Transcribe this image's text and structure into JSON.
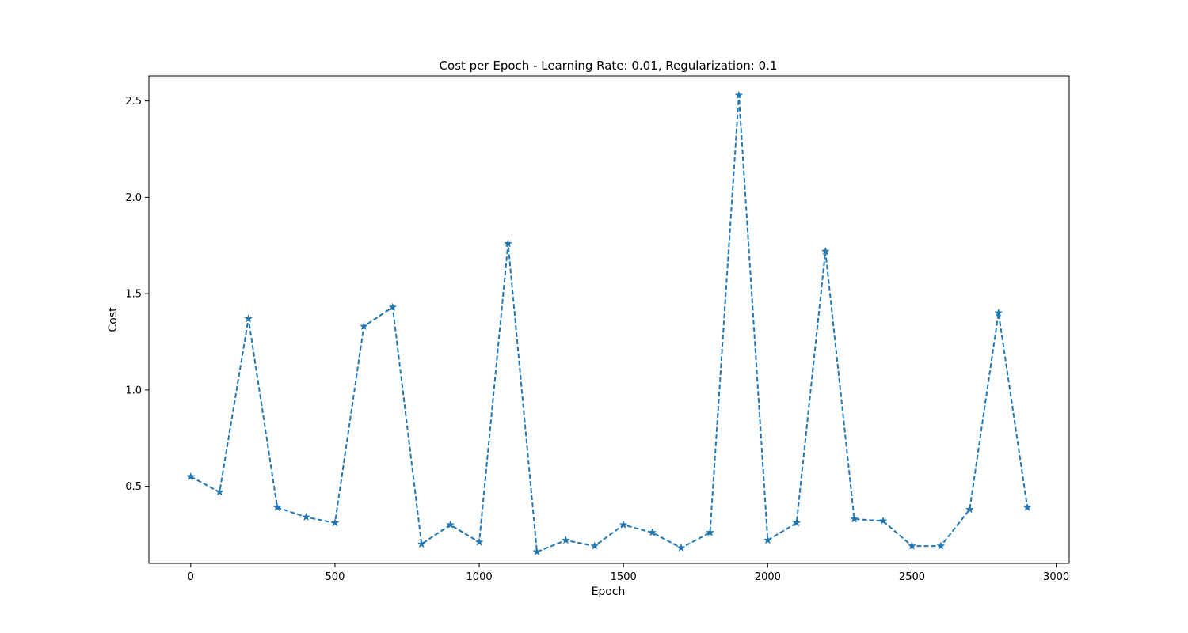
{
  "chart_data": {
    "type": "line",
    "title": "Cost per Epoch - Learning Rate: 0.01, Regularization: 0.1",
    "xlabel": "Epoch",
    "ylabel": "Cost",
    "xlim": [
      -145,
      3045
    ],
    "ylim": [
      0.1,
      2.63
    ],
    "xticks": [
      0,
      500,
      1000,
      1500,
      2000,
      2500,
      3000
    ],
    "xtick_labels": [
      "0",
      "500",
      "1000",
      "1500",
      "2000",
      "2500",
      "3000"
    ],
    "yticks": [
      0.5,
      1.0,
      1.5,
      2.0,
      2.5
    ],
    "ytick_labels": [
      "0.5",
      "1.0",
      "1.5",
      "2.0",
      "2.5"
    ],
    "grid": false,
    "legend": "none",
    "series": [
      {
        "color": "#1f77b4",
        "line_style": "dashed",
        "marker": "star",
        "x": [
          0,
          100,
          200,
          300,
          400,
          500,
          600,
          700,
          800,
          900,
          1000,
          1100,
          1200,
          1300,
          1400,
          1500,
          1600,
          1700,
          1800,
          1900,
          2000,
          2100,
          2200,
          2300,
          2400,
          2500,
          2600,
          2700,
          2800,
          2900
        ],
        "values": [
          0.55,
          0.47,
          1.37,
          0.39,
          0.34,
          0.31,
          1.33,
          1.43,
          0.2,
          0.3,
          0.21,
          1.76,
          0.16,
          0.22,
          0.19,
          0.3,
          0.26,
          0.18,
          0.26,
          2.53,
          0.22,
          0.31,
          1.72,
          0.33,
          0.32,
          0.19,
          0.19,
          0.38,
          1.4,
          0.39
        ]
      }
    ]
  }
}
